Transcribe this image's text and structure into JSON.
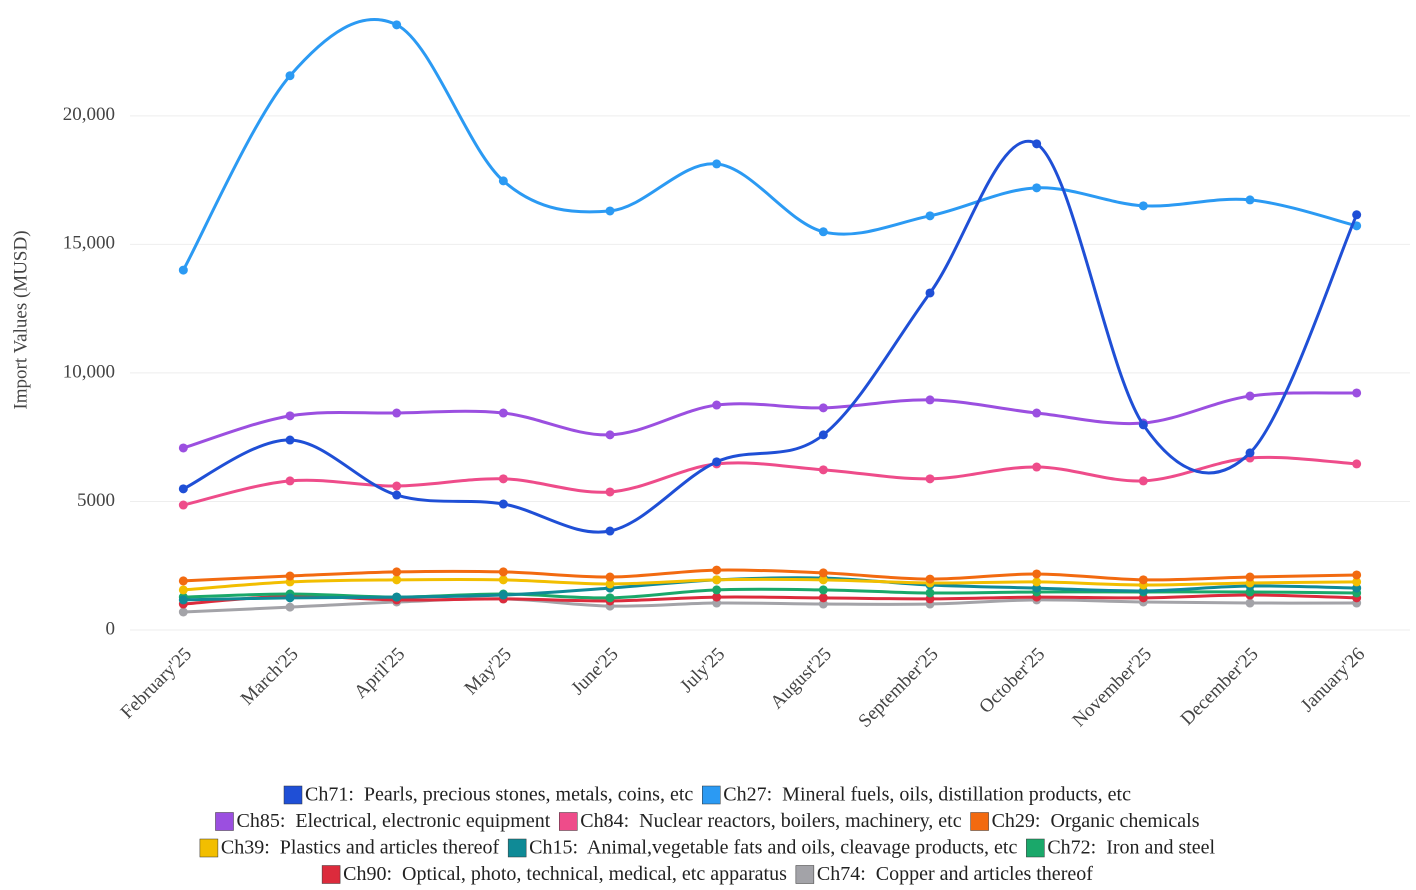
{
  "chart_data": {
    "type": "line",
    "y_label": "Import Values (MUSD)",
    "categories": [
      "February'25",
      "March'25",
      "April'25",
      "May'25",
      "June'25",
      "July'25",
      "August'25",
      "September'25",
      "October'25",
      "November'25",
      "December'25",
      "January'26"
    ],
    "ylim": [
      0,
      24000
    ],
    "yticks": [
      0,
      5000,
      {
        "value": 10000,
        "label": "10,000"
      },
      {
        "value": 15000,
        "label": "15,000"
      },
      {
        "value": 20000,
        "label": "20,000"
      }
    ],
    "grid": true,
    "series": [
      {
        "name": "Ch71:  Pearls, precious stones, metals, coins, etc",
        "color": "#1f4fd6",
        "values": [
          5490,
          7390,
          5250,
          4900,
          3850,
          6540,
          7590,
          13110,
          18910,
          7980,
          6890,
          16150
        ]
      },
      {
        "name": "Ch27:  Mineral fuels, oils, distillation products, etc",
        "color": "#2b9af3",
        "values": [
          14000,
          21560,
          23540,
          17470,
          16300,
          18130,
          15490,
          16110,
          17200,
          16500,
          16730,
          15720
        ]
      },
      {
        "name": "Ch85:  Electrical, electronic equipment",
        "color": "#9b4fe0",
        "values": [
          7080,
          8330,
          8440,
          8440,
          7590,
          8750,
          8640,
          8950,
          8440,
          8050,
          9100,
          9220
        ]
      },
      {
        "name": "Ch84:  Nuclear reactors, boilers, machinery, etc",
        "color": "#ee4c8a",
        "values": [
          4860,
          5800,
          5600,
          5880,
          5370,
          6460,
          6230,
          5880,
          6340,
          5800,
          6690,
          6460
        ]
      },
      {
        "name": "Ch29:  Organic chemicals",
        "color": "#f26a10",
        "values": [
          1910,
          2100,
          2260,
          2260,
          2060,
          2330,
          2220,
          1980,
          2180,
          1950,
          2060,
          2140
        ]
      },
      {
        "name": "Ch39:  Plastics and articles thereof",
        "color": "#f2be00",
        "values": [
          1560,
          1870,
          1950,
          1950,
          1790,
          1950,
          1950,
          1830,
          1870,
          1750,
          1830,
          1870
        ]
      },
      {
        "name": "Ch15:  Animal,vegetable fats and oils, cleavage products, etc",
        "color": "#0f8a96",
        "values": [
          1170,
          1250,
          1280,
          1360,
          1630,
          1950,
          2020,
          1750,
          1630,
          1520,
          1710,
          1630
        ]
      },
      {
        "name": "Ch72:  Iron and steel",
        "color": "#1aa86a",
        "values": [
          1280,
          1400,
          1280,
          1400,
          1250,
          1560,
          1560,
          1440,
          1480,
          1480,
          1480,
          1440
        ]
      },
      {
        "name": "Ch90:  Optical, photo, technical, medical, etc apparatus",
        "color": "#dc2b3c",
        "values": [
          1010,
          1320,
          1170,
          1210,
          1130,
          1280,
          1250,
          1210,
          1280,
          1250,
          1360,
          1250
        ]
      },
      {
        "name": "Ch74:  Copper and articles thereof",
        "color": "#a3a3a8",
        "values": [
          700,
          890,
          1090,
          1210,
          930,
          1050,
          1010,
          1010,
          1170,
          1090,
          1050,
          1050
        ]
      }
    ]
  }
}
